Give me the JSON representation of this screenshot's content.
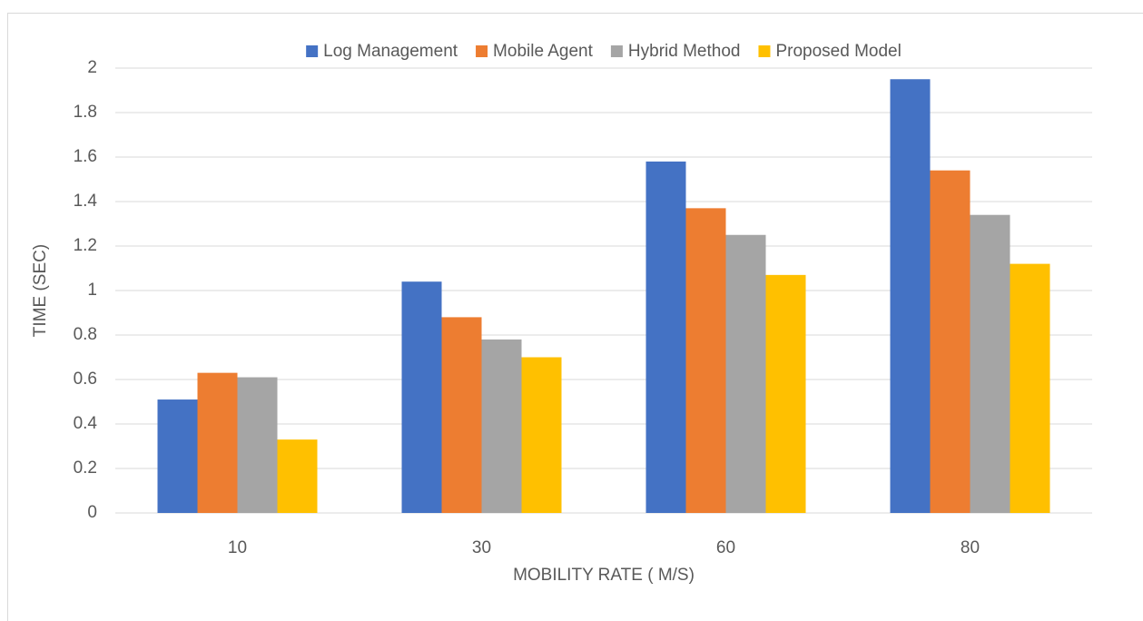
{
  "chart_data": {
    "type": "bar",
    "x_label": "MOBILITY RATE ( M/S)",
    "y_label": "TIME  (SEC)",
    "categories": [
      "10",
      "30",
      "60",
      "80"
    ],
    "series": [
      {
        "name": "Log Management",
        "color": "#4472c4",
        "values": [
          0.51,
          1.04,
          1.58,
          1.95
        ]
      },
      {
        "name": "Mobile Agent",
        "color": "#ed7d31",
        "values": [
          0.63,
          0.88,
          1.37,
          1.54
        ]
      },
      {
        "name": "Hybrid Method",
        "color": "#a5a5a5",
        "values": [
          0.61,
          0.78,
          1.25,
          1.34
        ]
      },
      {
        "name": "Proposed Model",
        "color": "#ffc000",
        "values": [
          0.33,
          0.7,
          1.07,
          1.12
        ]
      }
    ],
    "ylim": [
      0,
      2
    ],
    "yticks": [
      0,
      0.2,
      0.4,
      0.6,
      0.8,
      1,
      1.2,
      1.4,
      1.6,
      1.8,
      2
    ],
    "grid": true,
    "legend": "top"
  }
}
